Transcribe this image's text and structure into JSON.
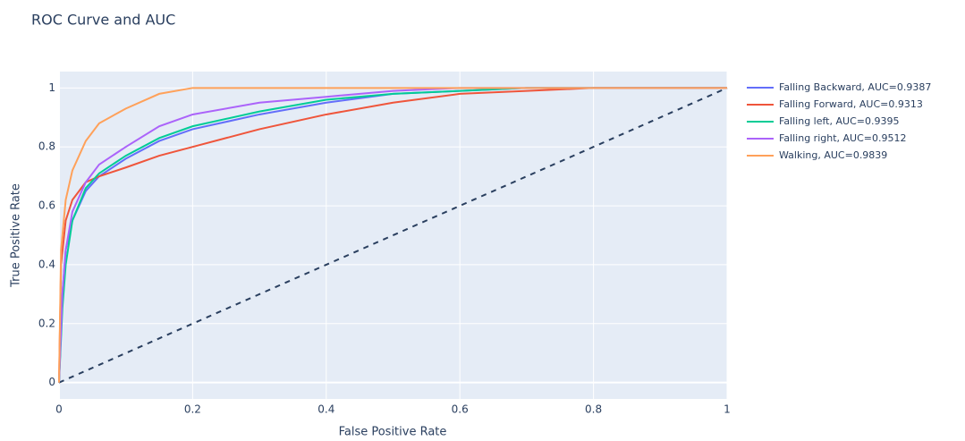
{
  "chart_data": {
    "type": "line",
    "title": "ROC Curve and AUC",
    "x_label": "False Positive Rate",
    "y_label": "True Positive Rate",
    "xlim": [
      0,
      1
    ],
    "ylim": [
      -0.0556,
      1.0556
    ],
    "xticks": [
      0,
      0.2,
      0.4,
      0.6,
      0.8,
      1
    ],
    "yticks": [
      0,
      0.2,
      0.4,
      0.6,
      0.8,
      1
    ],
    "grid": true,
    "legend": "outside-right",
    "series": [
      {
        "name": "Falling Backward, AUC=0.9387",
        "color": "#636efa",
        "x": [
          0,
          0.005,
          0.01,
          0.02,
          0.04,
          0.06,
          0.1,
          0.15,
          0.2,
          0.3,
          0.4,
          0.5,
          0.6,
          0.7,
          1
        ],
        "values": [
          0,
          0.3,
          0.45,
          0.55,
          0.65,
          0.7,
          0.76,
          0.82,
          0.86,
          0.91,
          0.95,
          0.98,
          0.99,
          1,
          1
        ]
      },
      {
        "name": "Falling Forward, AUC=0.9313",
        "color": "#ef553b",
        "x": [
          0,
          0.003,
          0.01,
          0.02,
          0.04,
          0.06,
          0.1,
          0.15,
          0.2,
          0.3,
          0.4,
          0.5,
          0.6,
          0.7,
          0.8,
          1
        ],
        "values": [
          0,
          0.4,
          0.55,
          0.62,
          0.68,
          0.7,
          0.73,
          0.77,
          0.8,
          0.86,
          0.91,
          0.95,
          0.98,
          0.99,
          1,
          1
        ]
      },
      {
        "name": "Falling left, AUC=0.9395",
        "color": "#00cc96",
        "x": [
          0,
          0.005,
          0.01,
          0.02,
          0.04,
          0.06,
          0.1,
          0.15,
          0.2,
          0.3,
          0.4,
          0.5,
          0.6,
          0.7,
          1
        ],
        "values": [
          0,
          0.25,
          0.4,
          0.55,
          0.66,
          0.71,
          0.77,
          0.83,
          0.87,
          0.92,
          0.96,
          0.98,
          0.99,
          1,
          1
        ]
      },
      {
        "name": "Falling right, AUC=0.9512",
        "color": "#ab63fa",
        "x": [
          0,
          0.005,
          0.01,
          0.02,
          0.04,
          0.06,
          0.1,
          0.15,
          0.2,
          0.3,
          0.4,
          0.5,
          0.6,
          1
        ],
        "values": [
          0,
          0.3,
          0.45,
          0.58,
          0.68,
          0.74,
          0.8,
          0.87,
          0.91,
          0.95,
          0.97,
          0.99,
          1,
          1
        ]
      },
      {
        "name": "Walking, AUC=0.9839",
        "color": "#ffa15a",
        "x": [
          0,
          0.003,
          0.01,
          0.02,
          0.04,
          0.06,
          0.1,
          0.15,
          0.2,
          1
        ],
        "values": [
          0,
          0.45,
          0.62,
          0.72,
          0.82,
          0.88,
          0.93,
          0.98,
          1,
          1
        ]
      }
    ],
    "diagonal": {
      "color": "#2a3f5f",
      "x": [
        0,
        1
      ],
      "values": [
        0,
        1
      ]
    }
  }
}
